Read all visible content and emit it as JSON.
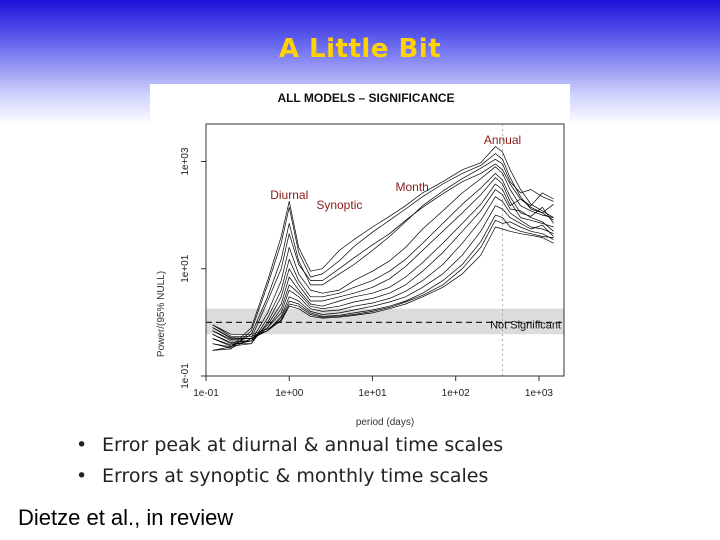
{
  "slide": {
    "title": "A Little Bit",
    "bullets": [
      "Error peak at diurnal & annual time scales",
      "Errors at synoptic & monthly time scales"
    ],
    "bullet_marker": "•",
    "citation": "Dietze et al., in review"
  },
  "colors": {
    "title": "#ffd300",
    "significance_band": "#dcdcdc",
    "series_line": "#000000"
  },
  "chart_data": {
    "type": "line",
    "title": "ALL MODELS – SIGNIFICANCE",
    "xlabel": "period (days)",
    "ylabel": "Power/(95% NULL)",
    "x_scale": "log",
    "y_scale": "log",
    "xlim": [
      0.1,
      2000
    ],
    "ylim": [
      0.1,
      5000
    ],
    "x_ticks": [
      {
        "value": 0.1,
        "label": "1e-01"
      },
      {
        "value": 1,
        "label": "1e+00"
      },
      {
        "value": 10,
        "label": "1e+01"
      },
      {
        "value": 100,
        "label": "1e+02"
      },
      {
        "value": 1000,
        "label": "1e+03"
      }
    ],
    "y_ticks": [
      {
        "value": 0.1,
        "label": "1e-01"
      },
      {
        "value": 10,
        "label": "1e+01"
      },
      {
        "value": 1000,
        "label": "1e+03"
      }
    ],
    "significance_band": {
      "y_low": 0.6,
      "y_high": 1.8,
      "label": "Not Significant"
    },
    "null_line": 1,
    "annual_marker_x": 365,
    "annotations": [
      {
        "text": "Annual",
        "x": 365,
        "y": 2100
      },
      {
        "text": "Month",
        "x": 30,
        "y": 280
      },
      {
        "text": "Diurnal",
        "x": 1,
        "y": 200
      },
      {
        "text": "Synoptic",
        "x": 4,
        "y": 130
      }
    ],
    "x": [
      0.12,
      0.2,
      0.35,
      0.55,
      0.8,
      1.0,
      1.3,
      1.8,
      2.5,
      4,
      6,
      10,
      16,
      25,
      40,
      70,
      120,
      200,
      300,
      365,
      450,
      600,
      800,
      1100,
      1500
    ],
    "series": [
      {
        "values": [
          0.3,
          0.35,
          0.8,
          6,
          40,
          180,
          25,
          9,
          10,
          22,
          35,
          60,
          95,
          150,
          260,
          420,
          700,
          950,
          1900,
          1500,
          700,
          300,
          160,
          120,
          90
        ]
      },
      {
        "values": [
          0.3,
          0.32,
          0.7,
          5,
          30,
          140,
          20,
          7,
          8,
          14,
          26,
          48,
          80,
          130,
          220,
          380,
          600,
          850,
          1400,
          1100,
          500,
          220,
          130,
          110,
          80
        ]
      },
      {
        "values": [
          0.4,
          0.35,
          0.6,
          3,
          15,
          70,
          14,
          5,
          5,
          8,
          12,
          22,
          40,
          75,
          150,
          280,
          480,
          750,
          1100,
          900,
          420,
          260,
          300,
          220,
          180
        ]
      },
      {
        "values": [
          0.4,
          0.33,
          0.5,
          2.5,
          10,
          45,
          12,
          6,
          6,
          10,
          16,
          28,
          45,
          80,
          140,
          250,
          420,
          600,
          900,
          700,
          380,
          200,
          150,
          260,
          200
        ]
      },
      {
        "values": [
          0.5,
          0.38,
          0.45,
          1.5,
          6,
          25,
          8,
          4,
          3.5,
          4,
          6,
          9,
          14,
          25,
          55,
          120,
          260,
          480,
          800,
          600,
          300,
          150,
          120,
          100,
          90
        ]
      },
      {
        "values": [
          0.5,
          0.36,
          0.4,
          1.2,
          4,
          15,
          6,
          3,
          3,
          3.5,
          4.5,
          6,
          9,
          15,
          30,
          70,
          160,
          320,
          600,
          450,
          220,
          110,
          95,
          140,
          70
        ]
      },
      {
        "values": [
          0.6,
          0.4,
          0.4,
          1.0,
          3,
          10,
          5,
          2.5,
          2.5,
          3,
          3.5,
          4.5,
          6.5,
          11,
          22,
          50,
          110,
          240,
          500,
          380,
          180,
          90,
          80,
          70,
          60
        ]
      },
      {
        "values": [
          0.6,
          0.42,
          0.45,
          0.9,
          2.2,
          7,
          4,
          2.2,
          2,
          2.5,
          3,
          3.5,
          4.5,
          7,
          13,
          30,
          70,
          160,
          380,
          300,
          150,
          200,
          140,
          110,
          160
        ]
      },
      {
        "values": [
          0.7,
          0.45,
          0.45,
          0.8,
          1.8,
          5,
          3.5,
          2.0,
          1.8,
          2,
          2.4,
          2.8,
          3.5,
          5,
          9,
          20,
          50,
          120,
          300,
          240,
          130,
          120,
          90,
          75,
          50
        ]
      },
      {
        "values": [
          0.7,
          0.48,
          0.5,
          0.8,
          1.5,
          4,
          3,
          1.8,
          1.6,
          1.7,
          2,
          2.3,
          2.8,
          3.8,
          6,
          12,
          30,
          80,
          220,
          180,
          110,
          80,
          60,
          55,
          45
        ]
      },
      {
        "values": [
          0.8,
          0.5,
          0.5,
          0.7,
          1.3,
          3,
          2.5,
          1.6,
          1.4,
          1.5,
          1.7,
          2,
          2.4,
          3,
          4.5,
          8,
          18,
          50,
          150,
          130,
          90,
          70,
          55,
          65,
          40
        ]
      },
      {
        "values": [
          0.8,
          0.52,
          0.5,
          0.7,
          1.2,
          2.5,
          2.2,
          1.5,
          1.3,
          1.35,
          1.5,
          1.7,
          2,
          2.5,
          3.5,
          6,
          12,
          32,
          100,
          90,
          60,
          50,
          45,
          40,
          38
        ]
      },
      {
        "values": [
          0.9,
          0.55,
          0.55,
          0.7,
          1.1,
          2.2,
          2.0,
          1.4,
          1.25,
          1.3,
          1.4,
          1.6,
          1.9,
          2.4,
          3.2,
          5,
          10,
          25,
          80,
          70,
          75,
          60,
          50,
          45,
          35
        ]
      },
      {
        "values": [
          0.9,
          0.6,
          0.6,
          0.75,
          1.05,
          2.0,
          1.8,
          1.3,
          1.2,
          1.25,
          1.35,
          1.5,
          1.8,
          2.2,
          3,
          4.5,
          8,
          18,
          60,
          55,
          50,
          45,
          42,
          38,
          30
        ]
      }
    ]
  }
}
